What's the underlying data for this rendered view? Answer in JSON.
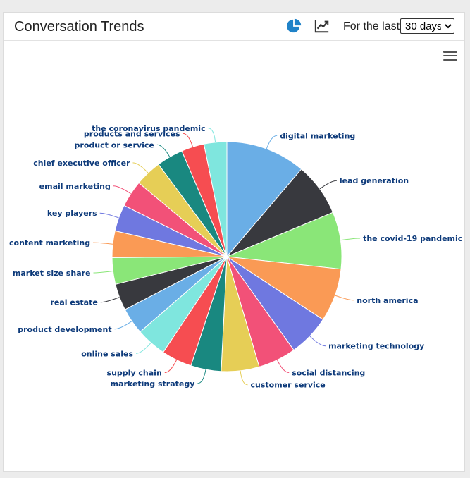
{
  "header": {
    "title": "Conversation Trends",
    "range_label": "For the last",
    "range_selected": "30 days",
    "icons": [
      "pie-chart-icon",
      "line-chart-icon"
    ]
  },
  "menu": {
    "icon": "hamburger-menu-icon"
  },
  "chart_data": {
    "type": "pie",
    "title": "",
    "legend": "none",
    "slices": [
      {
        "label": "digital marketing",
        "value": 10.5,
        "color": "#6aaee6"
      },
      {
        "label": "lead generation",
        "value": 7.0,
        "color": "#38393e"
      },
      {
        "label": "the covid-19 pandemic",
        "value": 7.5,
        "color": "#8ae678"
      },
      {
        "label": "north america",
        "value": 7.0,
        "color": "#fa9a55"
      },
      {
        "label": "marketing technology",
        "value": 5.5,
        "color": "#6f78e0"
      },
      {
        "label": "social distancing",
        "value": 5.0,
        "color": "#f25178"
      },
      {
        "label": "customer service",
        "value": 5.0,
        "color": "#e6ce56"
      },
      {
        "label": "marketing strategy",
        "value": 4.0,
        "color": "#198880"
      },
      {
        "label": "supply chain",
        "value": 4.0,
        "color": "#f64d51"
      },
      {
        "label": "online sales",
        "value": 4.0,
        "color": "#7fe6de"
      },
      {
        "label": "product development",
        "value": 3.5,
        "color": "#6aaee6"
      },
      {
        "label": "real estate",
        "value": 3.5,
        "color": "#38393e"
      },
      {
        "label": "market size share",
        "value": 3.5,
        "color": "#8ae678"
      },
      {
        "label": "content marketing",
        "value": 3.5,
        "color": "#fa9a55"
      },
      {
        "label": "key players",
        "value": 3.5,
        "color": "#6f78e0"
      },
      {
        "label": "email marketing",
        "value": 3.5,
        "color": "#f25178"
      },
      {
        "label": "chief executive officer",
        "value": 3.5,
        "color": "#e6ce56"
      },
      {
        "label": "product or service",
        "value": 3.5,
        "color": "#198880"
      },
      {
        "label": "products and services",
        "value": 3.0,
        "color": "#f64d51"
      },
      {
        "label": "the coronavirus pandemic",
        "value": 3.0,
        "color": "#7fe6de"
      }
    ]
  }
}
